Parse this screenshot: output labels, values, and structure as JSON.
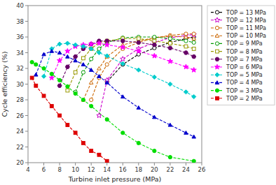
{
  "chart_data": {
    "type": "line",
    "xlabel": "Turbine inlet pressure (MPa)",
    "ylabel": "Cycle efficiency (%)",
    "xlim": [
      4,
      26
    ],
    "ylim": [
      20,
      40
    ],
    "xticks": [
      4,
      6,
      8,
      10,
      12,
      14,
      16,
      18,
      20,
      22,
      24,
      26
    ],
    "yticks": [
      20,
      22,
      24,
      26,
      28,
      30,
      32,
      34,
      36,
      38,
      40
    ],
    "line_style": "dashed",
    "legend": "right",
    "series": [
      {
        "name": "TOP = 13 MPa",
        "color": "#000000",
        "marker": "circle-open",
        "x": [
          14,
          16,
          18,
          20,
          22,
          24,
          25
        ],
        "values": [
          30.3,
          32.5,
          33.8,
          34.6,
          35.3,
          35.8,
          36.0
        ]
      },
      {
        "name": "TOP = 12 MPa",
        "color": "#cc00cc",
        "marker": "star-open",
        "x": [
          13,
          14,
          16,
          18,
          20,
          22,
          24,
          25
        ],
        "values": [
          26.0,
          30.5,
          33.2,
          34.5,
          35.3,
          35.9,
          36.2,
          36.3
        ]
      },
      {
        "name": "TOP = 11 MPa",
        "color": "#cc6600",
        "marker": "circle-open",
        "x": [
          12,
          13,
          14,
          16,
          18,
          20,
          22,
          24,
          25
        ],
        "values": [
          28.0,
          30.8,
          32.5,
          34.5,
          35.3,
          35.9,
          36.2,
          36.4,
          36.4
        ]
      },
      {
        "name": "TOP = 10 MPa",
        "color": "#cc6600",
        "marker": "triangle-open",
        "x": [
          11,
          12,
          13,
          14,
          16,
          18,
          20,
          22,
          24,
          25
        ],
        "values": [
          28.0,
          30.2,
          32.0,
          33.5,
          35.0,
          35.5,
          35.9,
          36.1,
          36.0,
          35.8
        ]
      },
      {
        "name": "TOP = 9 MPa",
        "color": "#009900",
        "marker": "circle-open",
        "x": [
          10,
          11,
          12,
          13,
          14,
          16,
          18,
          20,
          22,
          24,
          25
        ],
        "values": [
          29.0,
          31.5,
          33.2,
          34.5,
          35.3,
          35.9,
          36.0,
          36.0,
          35.8,
          35.5,
          35.3
        ]
      },
      {
        "name": "TOP = 8 MPa",
        "color": "#999900",
        "marker": "square-open",
        "x": [
          9,
          10,
          11,
          12,
          13,
          14,
          16,
          18,
          20,
          22,
          24,
          25
        ],
        "values": [
          29.2,
          31.5,
          33.3,
          34.5,
          35.3,
          35.5,
          35.8,
          35.8,
          35.5,
          35.2,
          34.8,
          34.5
        ]
      },
      {
        "name": "TOP = 7 MPa",
        "color": "#660066",
        "marker": "hexagon",
        "x": [
          8,
          9,
          10,
          11,
          12,
          13,
          14,
          16,
          18,
          20,
          22,
          24,
          25
        ],
        "values": [
          29.8,
          32.2,
          33.5,
          34.5,
          35.1,
          35.5,
          35.5,
          35.5,
          35.3,
          35.0,
          34.6,
          34.0,
          33.5
        ]
      },
      {
        "name": "TOP = 6 MPa",
        "color": "#ff00ff",
        "marker": "star",
        "x": [
          7,
          8,
          9,
          10,
          11,
          12,
          13,
          14,
          16,
          18,
          20,
          22,
          24,
          25
        ],
        "values": [
          30.8,
          33.0,
          34.2,
          34.8,
          35.0,
          35.1,
          35.2,
          35.0,
          34.7,
          34.2,
          33.6,
          32.9,
          32.2,
          31.8
        ]
      },
      {
        "name": "TOP = 5 MPa",
        "color": "#00cccc",
        "marker": "diamond",
        "x": [
          6,
          7,
          8,
          9,
          10,
          11,
          12,
          13,
          14,
          16,
          18,
          20,
          22,
          24,
          25
        ],
        "values": [
          31.0,
          34.5,
          35.1,
          35.2,
          35.0,
          34.8,
          34.5,
          34.0,
          33.6,
          32.6,
          31.8,
          30.9,
          30.0,
          29.0,
          28.4
        ]
      },
      {
        "name": "TOP = 4 MPa",
        "color": "#0000cc",
        "marker": "triangle",
        "x": [
          5,
          6,
          7,
          8,
          9,
          10,
          11,
          12,
          13,
          14,
          16,
          18,
          20,
          22,
          24,
          25
        ],
        "values": [
          31.2,
          33.8,
          34.2,
          34.0,
          33.5,
          33.0,
          32.5,
          31.8,
          31.0,
          30.2,
          28.4,
          27.0,
          25.8,
          24.8,
          23.8,
          23.3
        ]
      },
      {
        "name": "TOP = 3 MPa",
        "color": "#00dd00",
        "marker": "circle",
        "x": [
          4.5,
          5,
          6,
          7,
          8,
          9,
          10,
          11,
          12,
          14,
          16,
          18,
          20,
          22,
          25
        ],
        "values": [
          32.8,
          32.5,
          32.0,
          31.3,
          30.5,
          29.7,
          28.8,
          28.0,
          27.2,
          25.5,
          23.8,
          22.5,
          21.5,
          20.7,
          20.2
        ]
      },
      {
        "name": "TOP = 2 MPa",
        "color": "#dd0000",
        "marker": "square",
        "x": [
          4.5,
          5,
          6,
          7,
          8,
          9,
          10,
          11,
          12,
          13,
          14
        ],
        "values": [
          30.8,
          29.8,
          28.5,
          27.2,
          26.0,
          24.8,
          23.8,
          22.5,
          21.5,
          21.0,
          20.2
        ]
      }
    ]
  }
}
